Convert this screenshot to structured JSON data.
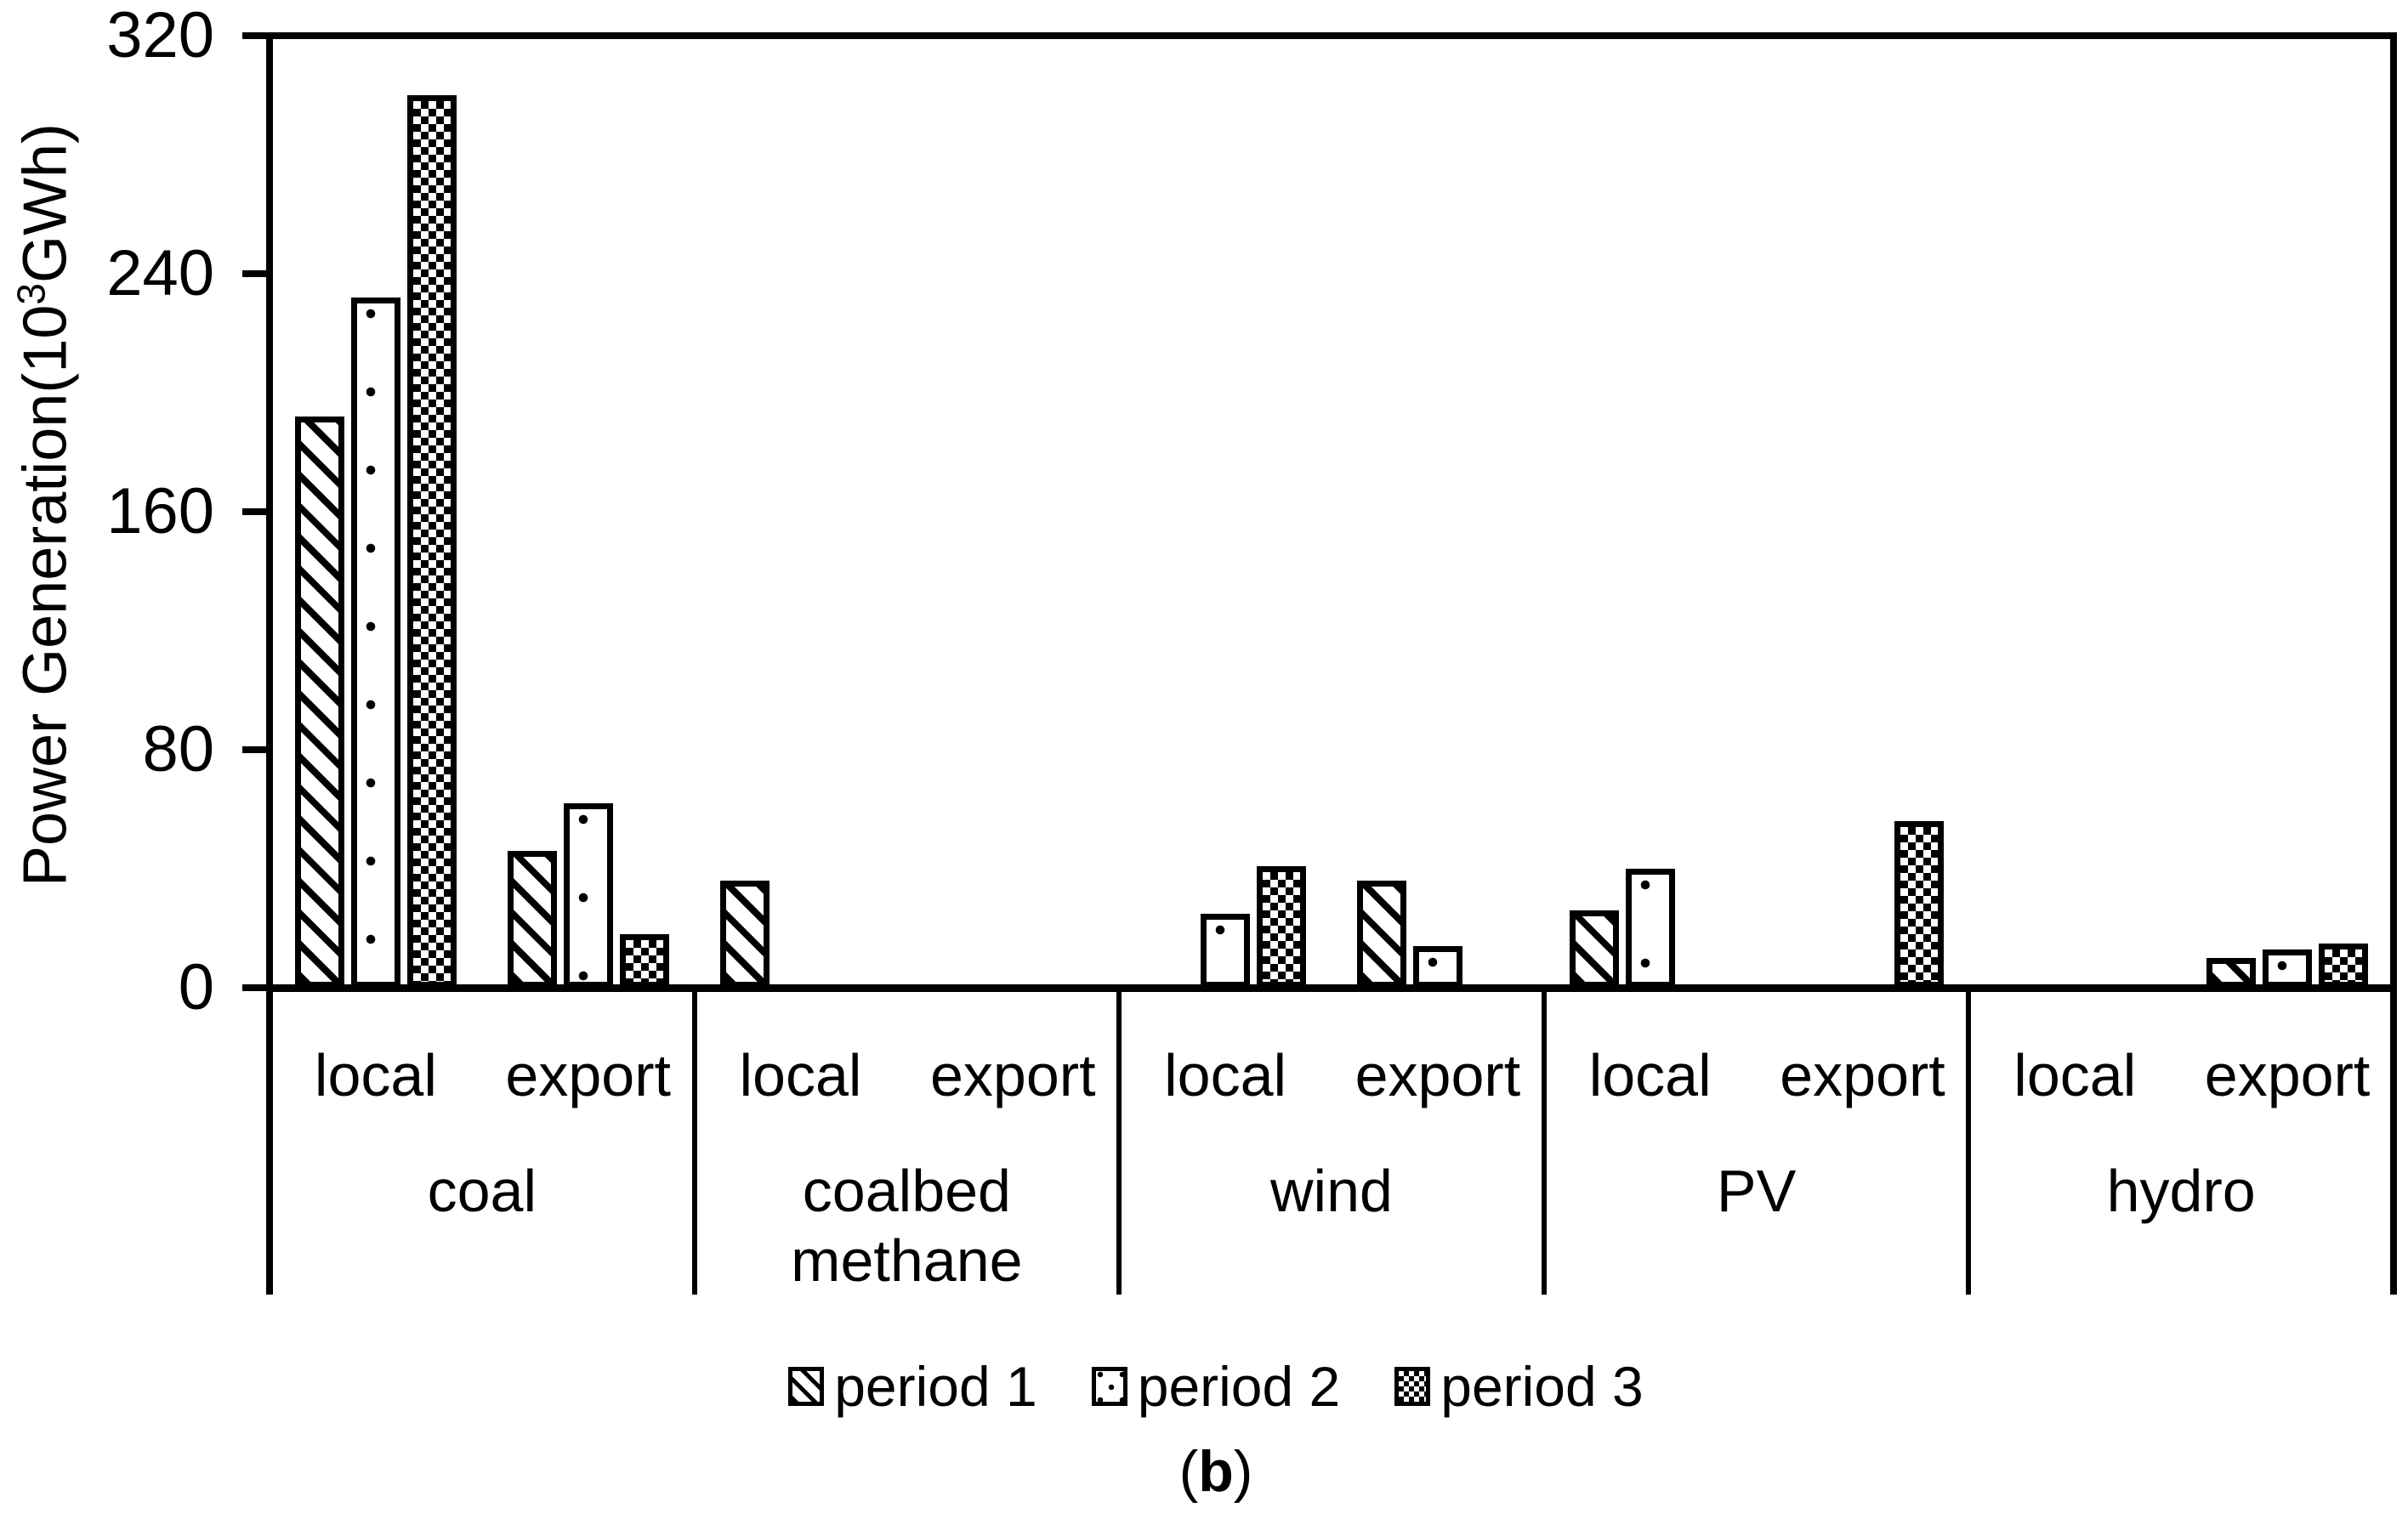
{
  "figure": {
    "caption_open": "(",
    "caption_letter": "b",
    "caption_close": ")"
  },
  "chart_data": {
    "type": "bar",
    "title": "",
    "ylabel": "Power Generation(10³GWh)",
    "ylabel_prefix": "Power Generation(10",
    "ylabel_sup": "3",
    "ylabel_suffix": "GWh)",
    "xlabel": "",
    "ylim": [
      0,
      320
    ],
    "yticks": [
      0,
      80,
      160,
      240,
      320
    ],
    "grid": false,
    "legend_position": "bottom-center",
    "colors": {
      "ink": "#000000",
      "background": "#ffffff"
    },
    "series": [
      {
        "name": "period 1",
        "pattern": "diagonal"
      },
      {
        "name": "period 2",
        "pattern": "dots"
      },
      {
        "name": "period 3",
        "pattern": "checker"
      }
    ],
    "groups": [
      {
        "label": "coal",
        "subcats": [
          {
            "label": "local",
            "values": [
              192,
              232,
              300
            ]
          },
          {
            "label": "export",
            "values": [
              46,
              62,
              18
            ]
          }
        ]
      },
      {
        "label": "coalbed methane",
        "subcats": [
          {
            "label": "local",
            "values": [
              36,
              0,
              0
            ]
          },
          {
            "label": "export",
            "values": [
              0,
              0,
              0
            ]
          }
        ]
      },
      {
        "label": "wind",
        "subcats": [
          {
            "label": "local",
            "values": [
              0,
              25,
              41
            ]
          },
          {
            "label": "export",
            "values": [
              36,
              14,
              0
            ]
          }
        ]
      },
      {
        "label": "PV",
        "subcats": [
          {
            "label": "local",
            "values": [
              26,
              40,
              0
            ]
          },
          {
            "label": "export",
            "values": [
              0,
              0,
              56
            ]
          }
        ]
      },
      {
        "label": "hydro",
        "subcats": [
          {
            "label": "local",
            "values": [
              0,
              0,
              0
            ]
          },
          {
            "label": "export",
            "values": [
              10,
              13,
              15
            ]
          }
        ]
      }
    ]
  }
}
